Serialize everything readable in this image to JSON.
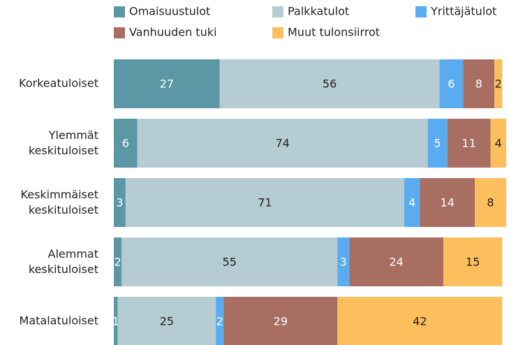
{
  "chart_data": {
    "type": "stacked_barh",
    "categories": [
      "Korkeatuloiset",
      "Ylemmät keskituloiset",
      "Keskimmäiset keskituloiset",
      "Alemmat keskituloiset",
      "Matalatuloiset"
    ],
    "series": [
      {
        "name": "Omaisuustulot",
        "color": "#5b97a5",
        "values": [
          27,
          6,
          3,
          2,
          1
        ]
      },
      {
        "name": "Palkkatulot",
        "color": "#b5cdd2",
        "values": [
          56,
          74,
          71,
          55,
          25
        ]
      },
      {
        "name": "Yrittäjätulot",
        "color": "#5aabf0",
        "values": [
          6,
          5,
          4,
          3,
          2
        ]
      },
      {
        "name": "Vanhuuden tuki",
        "color": "#a86e62",
        "values": [
          8,
          11,
          14,
          24,
          29
        ]
      },
      {
        "name": "Muut tulonsiirrot",
        "color": "#fdbe5e",
        "values": [
          2,
          4,
          8,
          15,
          42
        ]
      }
    ],
    "xlim": [
      0,
      100
    ]
  }
}
